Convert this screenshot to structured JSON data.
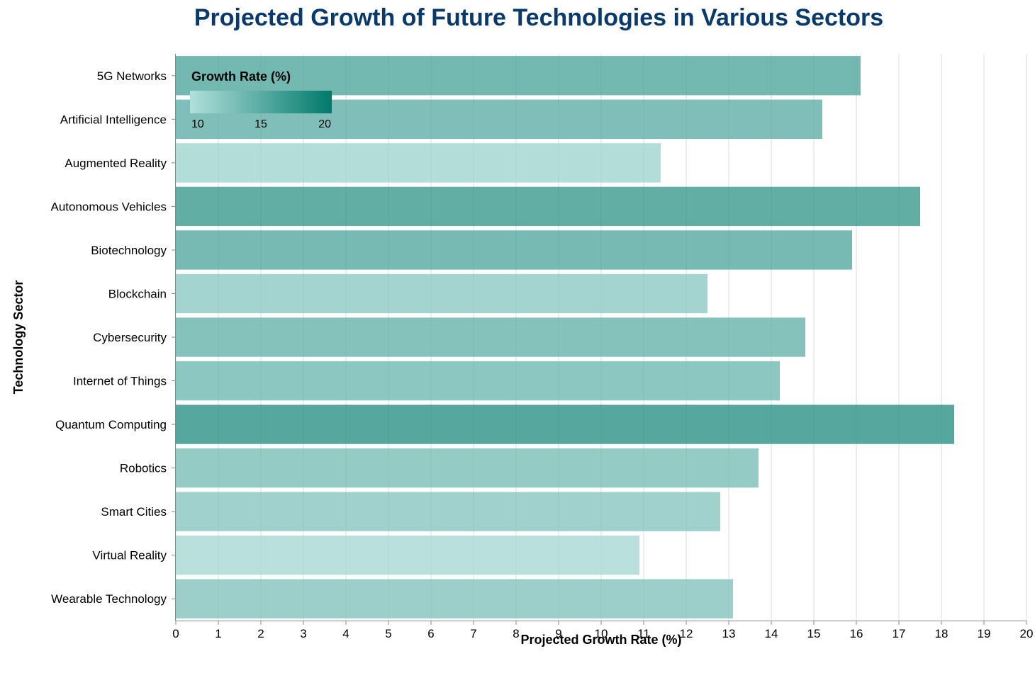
{
  "chart_data": {
    "type": "bar",
    "orientation": "horizontal",
    "title": "Projected Growth of Future Technologies in Various Sectors",
    "title_color": "#0a3a6b",
    "xlabel": "Projected Growth Rate (%)",
    "ylabel": "Technology Sector",
    "xlim": [
      0,
      20
    ],
    "x_ticks": [
      0,
      1,
      2,
      3,
      4,
      5,
      6,
      7,
      8,
      9,
      10,
      11,
      12,
      13,
      14,
      15,
      16,
      17,
      18,
      19,
      20
    ],
    "grid": "vertical",
    "categories": [
      "5G Networks",
      "Artificial Intelligence",
      "Augmented Reality",
      "Autonomous Vehicles",
      "Biotechnology",
      "Blockchain",
      "Cybersecurity",
      "Internet of Things",
      "Quantum Computing",
      "Robotics",
      "Smart Cities",
      "Virtual Reality",
      "Wearable Technology"
    ],
    "values": [
      16.1,
      15.2,
      11.4,
      17.5,
      15.9,
      12.5,
      14.8,
      14.2,
      18.3,
      13.7,
      12.8,
      10.9,
      13.1
    ],
    "color_legend": {
      "title": "Growth Rate (%)",
      "placement": "top-left",
      "domain": [
        10,
        20
      ],
      "ticks": [
        "10",
        "15",
        "20"
      ],
      "color_low": "#b2dfdb",
      "color_high": "#00796b"
    }
  }
}
